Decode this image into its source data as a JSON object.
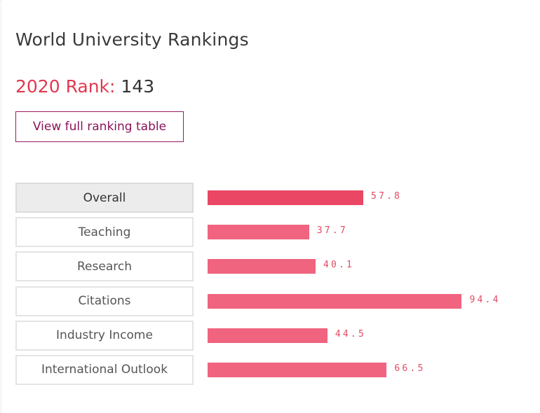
{
  "header": {
    "title": "World University Rankings",
    "rank_label": "2020 Rank:",
    "rank_value": "143",
    "view_button_label": "View full ranking table"
  },
  "metrics": [
    {
      "label": "Overall",
      "value": 57.8,
      "value_text": "57.8",
      "active": true
    },
    {
      "label": "Teaching",
      "value": 37.7,
      "value_text": "37.7",
      "active": false
    },
    {
      "label": "Research",
      "value": 40.1,
      "value_text": "40.1",
      "active": false
    },
    {
      "label": "Citations",
      "value": 94.4,
      "value_text": "94.4",
      "active": false
    },
    {
      "label": "Industry Income",
      "value": 44.5,
      "value_text": "44.5",
      "active": false
    },
    {
      "label": "International Outlook",
      "value": 66.5,
      "value_text": "66.5",
      "active": false
    }
  ],
  "colors": {
    "accent": "#e0394f",
    "bar": "#f06480",
    "bar_active": "#ea4764",
    "button_border": "#9a1b62"
  }
}
